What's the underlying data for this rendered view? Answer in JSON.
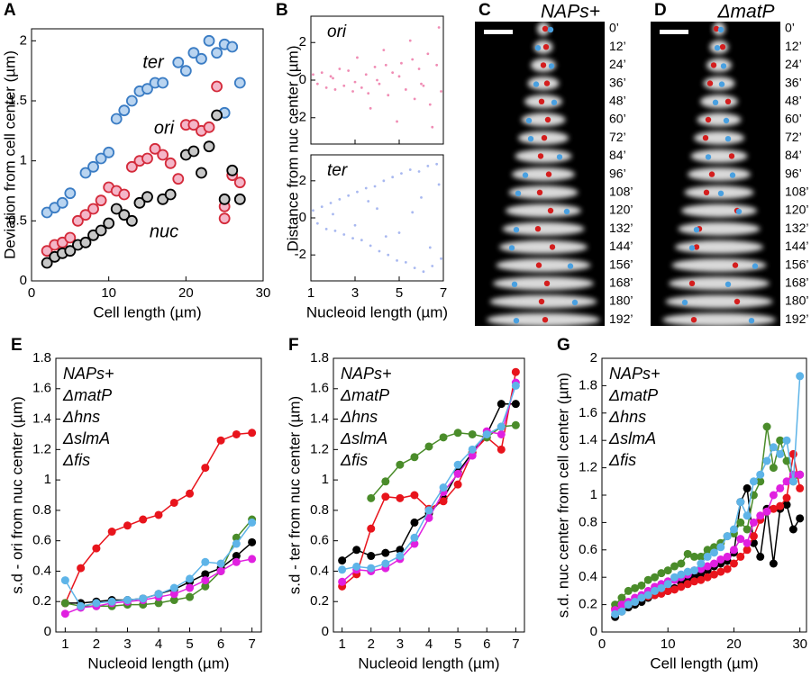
{
  "chart_data": [
    {
      "type": "scatter",
      "panel": "A",
      "xlabel": "Cell length (µm)",
      "ylabel": "Deviation from cell center (µm)",
      "xlim": [
        0,
        30
      ],
      "xticks": [
        0,
        10,
        20,
        30
      ],
      "ylim": [
        0,
        2.1
      ],
      "yticks": [
        0,
        0.5,
        1,
        1.5,
        2
      ],
      "series": [
        {
          "name": "ter",
          "color": "#3a7cc4",
          "fill": "#b9d4f0",
          "x": [
            2,
            3,
            4,
            5,
            7,
            8,
            9,
            10,
            11,
            12,
            13,
            14,
            15,
            16,
            17,
            19,
            20,
            21,
            22,
            23,
            24,
            25,
            26,
            25,
            27
          ],
          "y": [
            0.57,
            0.61,
            0.65,
            0.73,
            0.9,
            0.95,
            1.02,
            1.07,
            1.35,
            1.42,
            1.5,
            1.58,
            1.6,
            1.65,
            1.65,
            1.82,
            1.75,
            1.9,
            1.85,
            2.0,
            1.9,
            1.97,
            1.95,
            1.4,
            1.65
          ]
        },
        {
          "name": "ori",
          "color": "#d42a3a",
          "fill": "#f4b6c8",
          "x": [
            2,
            3,
            4,
            5,
            6,
            7,
            8,
            9,
            10,
            11,
            12,
            13,
            14,
            15,
            16,
            17,
            18,
            19,
            20,
            21,
            22,
            23,
            24,
            25,
            25,
            26,
            27
          ],
          "y": [
            0.25,
            0.3,
            0.32,
            0.36,
            0.5,
            0.55,
            0.6,
            0.67,
            0.78,
            0.75,
            0.72,
            0.95,
            1.0,
            1.02,
            1.1,
            1.05,
            0.98,
            0.85,
            1.3,
            1.3,
            1.25,
            1.28,
            1.62,
            0.62,
            0.52,
            0.88,
            0.82
          ]
        },
        {
          "name": "nuc",
          "color": "#000000",
          "fill": "#c8c8c8",
          "x": [
            2,
            3,
            4,
            5,
            6,
            7,
            8,
            9,
            10,
            11,
            12,
            13,
            14,
            15,
            17,
            18,
            20,
            21,
            22,
            23,
            24,
            25,
            26,
            27
          ],
          "y": [
            0.15,
            0.2,
            0.23,
            0.25,
            0.3,
            0.32,
            0.38,
            0.42,
            0.48,
            0.6,
            0.55,
            0.5,
            0.65,
            0.7,
            0.68,
            0.72,
            1.05,
            1.08,
            0.9,
            1.12,
            1.38,
            0.68,
            0.92,
            0.68
          ]
        }
      ]
    },
    {
      "type": "scatter_stack",
      "panel": "B",
      "xlabel": "Nucleoid length (µm)",
      "ylabel": "Distance from nuc center (µm)",
      "xlim": [
        1,
        7
      ],
      "xticks": [
        1,
        3,
        5,
        7
      ],
      "ylim": [
        -3.4,
        3.4
      ],
      "yticks": [
        -2,
        0,
        2
      ],
      "panels": [
        {
          "label": "ori",
          "color": "#f08cb4",
          "x": [
            1.1,
            1.3,
            1.5,
            1.7,
            1.9,
            2.1,
            2.3,
            2.5,
            2.7,
            2.9,
            3.1,
            3.3,
            3.5,
            3.7,
            3.9,
            4.1,
            4.3,
            4.5,
            4.7,
            4.9,
            5.1,
            5.3,
            5.5,
            5.7,
            5.9,
            6.1,
            6.3,
            6.5,
            6.7,
            6.9,
            2.0,
            3.0,
            4.0,
            5.0,
            6.0,
            3.6,
            4.4,
            5.6,
            6.4,
            6.8
          ],
          "y": [
            0.3,
            -0.2,
            0.4,
            -0.4,
            0.2,
            -0.5,
            0.6,
            -0.3,
            0.5,
            -0.6,
            1.2,
            -0.4,
            0.3,
            -1.5,
            0.7,
            -0.2,
            1.6,
            -0.8,
            0.4,
            -2.2,
            0.9,
            -0.5,
            2.1,
            -1.0,
            0.6,
            -0.3,
            1.4,
            -2.5,
            0.8,
            -0.6,
            0.1,
            -0.1,
            0.0,
            0.2,
            -0.2,
            -0.7,
            0.8,
            1.1,
            -1.3,
            2.8
          ]
        },
        {
          "label": "ter",
          "color": "#a8b8f0",
          "x": [
            1.1,
            1.3,
            1.5,
            1.7,
            1.9,
            2.1,
            2.3,
            2.5,
            2.7,
            2.9,
            3.1,
            3.3,
            3.5,
            3.7,
            3.9,
            4.1,
            4.3,
            4.5,
            4.7,
            4.9,
            5.1,
            5.3,
            5.5,
            5.7,
            5.9,
            6.1,
            6.3,
            6.5,
            6.7,
            6.9,
            2.0,
            3.0,
            4.0,
            5.0,
            6.0,
            3.6,
            4.4,
            5.6,
            6.4,
            6.8
          ],
          "y": [
            0.4,
            -0.3,
            0.6,
            -0.6,
            0.8,
            -0.7,
            1.0,
            -0.9,
            1.2,
            -1.1,
            1.4,
            -1.2,
            1.6,
            -1.5,
            1.7,
            -1.8,
            2.0,
            -2.0,
            2.2,
            -2.3,
            2.4,
            -2.4,
            2.6,
            -2.7,
            2.5,
            -2.9,
            2.8,
            -2.6,
            2.9,
            -2.2,
            0.2,
            -0.4,
            0.5,
            -0.8,
            1.1,
            0.9,
            -1.0,
            0.3,
            -1.6,
            1.8
          ]
        }
      ]
    },
    {
      "type": "line",
      "panel": "E",
      "xlabel": "Nucleoid length (µm)",
      "ylabel": "s.d - ori from nuc center (µm)",
      "xlim": [
        0.7,
        7.3
      ],
      "xticks": [
        1,
        2,
        3,
        4,
        5,
        6,
        7
      ],
      "ylim": [
        0,
        1.8
      ],
      "yticks": [
        0,
        0.2,
        0.4,
        0.6,
        0.8,
        1,
        1.2,
        1.4,
        1.6,
        1.8
      ],
      "legend": "upper left",
      "x": [
        1,
        1.5,
        2,
        2.5,
        3,
        3.5,
        4,
        4.5,
        5,
        5.5,
        6,
        6.5,
        7
      ],
      "series": [
        {
          "name": "NAPs+",
          "color": "#000000",
          "values": [
            0.19,
            0.19,
            0.2,
            0.21,
            0.21,
            0.22,
            0.25,
            0.28,
            0.33,
            0.38,
            0.42,
            0.5,
            0.59
          ]
        },
        {
          "name": "ΔmatP",
          "color": "#e8141c",
          "values": [
            0.19,
            0.42,
            0.55,
            0.66,
            0.7,
            0.74,
            0.77,
            0.85,
            0.91,
            1.08,
            1.26,
            1.3,
            1.31
          ]
        },
        {
          "name": "Δhns",
          "color": "#4a8c2a",
          "values": [
            0.19,
            0.17,
            0.17,
            0.17,
            0.18,
            0.18,
            0.19,
            0.21,
            0.23,
            0.3,
            0.4,
            0.62,
            0.74
          ]
        },
        {
          "name": "ΔslmA",
          "color": "#e020e0",
          "values": [
            0.12,
            0.16,
            0.17,
            0.19,
            0.2,
            0.21,
            0.23,
            0.25,
            0.29,
            0.34,
            0.4,
            0.46,
            0.48
          ]
        },
        {
          "name": "Δfis",
          "color": "#5eb4e8",
          "values": [
            0.34,
            0.17,
            0.19,
            0.2,
            0.21,
            0.22,
            0.25,
            0.29,
            0.35,
            0.46,
            0.45,
            0.58,
            0.72
          ]
        }
      ]
    },
    {
      "type": "line",
      "panel": "F",
      "xlabel": "Nucleoid length (µm)",
      "ylabel": "s.d - ter from nuc center (µm)",
      "xlim": [
        0.7,
        7.3
      ],
      "xticks": [
        1,
        2,
        3,
        4,
        5,
        6,
        7
      ],
      "ylim": [
        0,
        1.8
      ],
      "yticks": [
        0,
        0.2,
        0.4,
        0.6,
        0.8,
        1,
        1.2,
        1.4,
        1.6,
        1.8
      ],
      "legend": "upper left",
      "x": [
        1,
        1.5,
        2,
        2.5,
        3,
        3.5,
        4,
        4.5,
        5,
        5.5,
        6,
        6.5,
        7
      ],
      "series": [
        {
          "name": "NAPs+",
          "color": "#000000",
          "values": [
            0.47,
            0.54,
            0.5,
            0.52,
            0.54,
            0.72,
            0.78,
            0.88,
            1.05,
            1.18,
            1.3,
            1.5,
            1.5
          ]
        },
        {
          "name": "ΔmatP",
          "color": "#e8141c",
          "values": [
            0.3,
            0.38,
            0.68,
            0.89,
            0.88,
            0.9,
            0.81,
            0.86,
            0.97,
            1.18,
            1.28,
            1.2,
            1.71
          ]
        },
        {
          "name": "Δhns",
          "color": "#4a8c2a",
          "values": [
            null,
            null,
            0.88,
            0.99,
            1.1,
            1.15,
            1.22,
            1.28,
            1.31,
            1.3,
            1.28,
            1.35,
            1.36
          ]
        },
        {
          "name": "ΔslmA",
          "color": "#e020e0",
          "values": [
            0.33,
            0.41,
            0.4,
            0.42,
            0.48,
            0.58,
            0.75,
            0.92,
            1.04,
            1.16,
            1.32,
            1.3,
            1.64
          ]
        },
        {
          "name": "Δfis",
          "color": "#5eb4e8",
          "values": [
            0.41,
            0.43,
            0.42,
            0.45,
            0.5,
            0.62,
            0.8,
            0.95,
            1.1,
            1.2,
            1.3,
            1.35,
            1.62
          ]
        }
      ]
    },
    {
      "type": "line",
      "panel": "G",
      "xlabel": "Cell length (µm)",
      "ylabel": "s.d. nuc center from cell center (µm)",
      "xlim": [
        0,
        31
      ],
      "xticks": [
        0,
        10,
        20,
        30
      ],
      "ylim": [
        0,
        2
      ],
      "yticks": [
        0,
        0.2,
        0.4,
        0.6,
        0.8,
        1,
        1.2,
        1.4,
        1.6,
        1.8,
        2
      ],
      "legend": "upper left",
      "x": [
        2,
        3,
        4,
        5,
        6,
        7,
        8,
        9,
        10,
        11,
        12,
        13,
        14,
        15,
        16,
        17,
        18,
        19,
        20,
        21,
        22,
        23,
        24,
        25,
        26,
        27,
        28,
        29,
        30
      ],
      "series": [
        {
          "name": "NAPs+",
          "color": "#000000",
          "values": [
            0.11,
            0.15,
            0.18,
            0.2,
            0.22,
            0.25,
            0.27,
            0.29,
            0.3,
            0.32,
            0.36,
            0.38,
            0.4,
            0.42,
            0.45,
            0.48,
            0.5,
            0.52,
            0.58,
            0.95,
            1.05,
            0.65,
            0.55,
            0.9,
            0.5,
            0.9,
            0.93,
            0.75,
            0.83
          ]
        },
        {
          "name": "ΔmatP",
          "color": "#e8141c",
          "values": [
            0.17,
            0.19,
            0.2,
            0.22,
            0.25,
            0.26,
            0.27,
            0.28,
            0.3,
            0.31,
            0.33,
            0.35,
            0.37,
            0.38,
            0.4,
            0.42,
            0.44,
            0.46,
            0.5,
            0.55,
            0.6,
            0.7,
            0.82,
            0.88,
            0.9,
            0.92,
            0.98,
            1.3,
            1.05
          ]
        },
        {
          "name": "Δhns",
          "color": "#4a8c2a",
          "values": [
            0.2,
            0.25,
            0.3,
            0.32,
            0.34,
            0.38,
            0.4,
            0.43,
            0.45,
            0.48,
            0.5,
            0.57,
            0.55,
            0.55,
            0.6,
            0.62,
            0.65,
            0.7,
            0.72,
            0.8,
            0.75,
            1.0,
            1.1,
            1.5,
            1.2,
            1.4,
            1.25,
            1.1,
            1.15
          ]
        },
        {
          "name": "ΔslmA",
          "color": "#e020e0",
          "values": [
            0.16,
            0.2,
            0.22,
            0.25,
            0.27,
            0.3,
            0.33,
            0.35,
            0.37,
            0.38,
            0.4,
            0.42,
            0.45,
            0.46,
            0.48,
            0.5,
            0.53,
            0.55,
            0.6,
            0.68,
            0.65,
            0.8,
            0.85,
            0.88,
            1.0,
            1.05,
            1.1,
            1.15,
            1.15
          ]
        },
        {
          "name": "Δfis",
          "color": "#5eb4e8",
          "values": [
            0.13,
            0.15,
            0.2,
            0.22,
            0.25,
            0.27,
            0.3,
            0.32,
            0.35,
            0.4,
            0.42,
            0.44,
            0.45,
            0.5,
            0.55,
            0.58,
            0.62,
            0.7,
            0.75,
            0.95,
            0.85,
            1.1,
            1.15,
            1.25,
            1.35,
            1.3,
            1.4,
            1.1,
            1.87
          ]
        }
      ]
    }
  ],
  "micrographs": [
    {
      "panel": "C",
      "title": "NAPs+",
      "time_labels": [
        "0’",
        "12’",
        "24’",
        "36’",
        "48’",
        "60’",
        "72’",
        "84’",
        "96’",
        "108’",
        "120’",
        "132’",
        "144’",
        "156’",
        "168’",
        "180’",
        "192’"
      ]
    },
    {
      "panel": "D",
      "title": "ΔmatP",
      "time_labels": [
        "0’",
        "12’",
        "24’",
        "36’",
        "48’",
        "60’",
        "72’",
        "84’",
        "96’",
        "108’",
        "120’",
        "132’",
        "144’",
        "156’",
        "168’",
        "180’",
        "192’"
      ]
    }
  ]
}
